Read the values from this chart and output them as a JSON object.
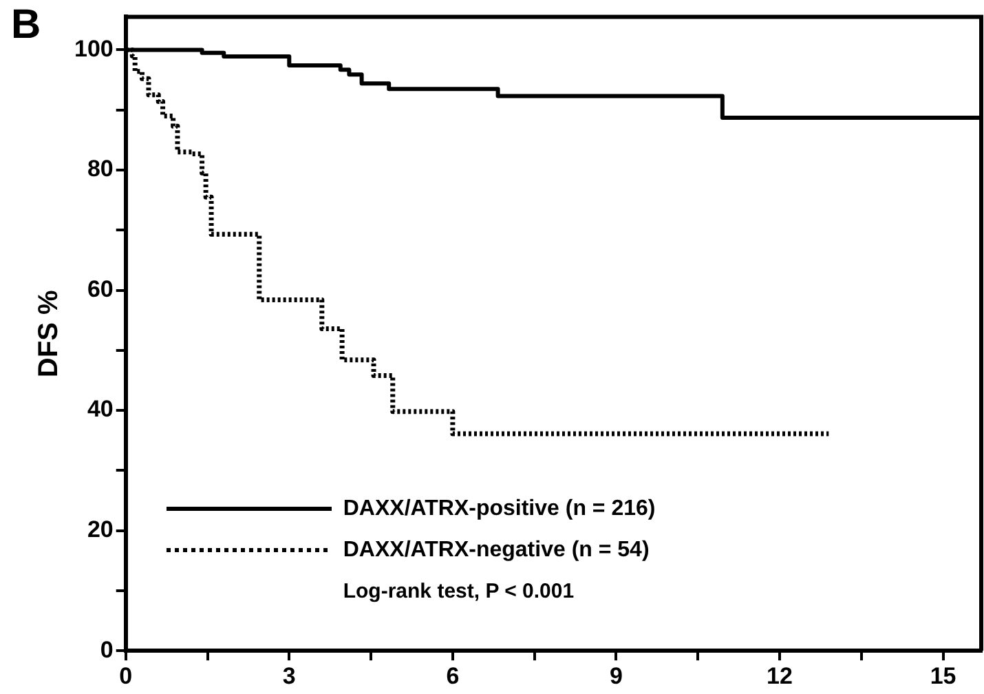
{
  "chart_data": {
    "type": "step",
    "title": "B",
    "ylabel": "DFS %",
    "xlim": [
      0,
      15.7
    ],
    "ylim": [
      0,
      105.5
    ],
    "xticks": [
      0,
      {
        "value": 1.5,
        "label": null
      },
      3,
      {
        "value": 4.5,
        "label": null
      },
      6,
      {
        "value": 7.5,
        "label": null
      },
      9,
      {
        "value": 10.5,
        "label": null
      },
      12,
      {
        "value": 13.5,
        "label": null
      },
      15
    ],
    "yticks": [
      0,
      {
        "value": 10,
        "label": null
      },
      20,
      {
        "value": 30,
        "label": null
      },
      40,
      {
        "value": 50,
        "label": null
      },
      60,
      {
        "value": 70,
        "label": null
      },
      80,
      {
        "value": 90,
        "label": null
      },
      100
    ],
    "grid": false,
    "legend": "bottom left",
    "marker": "none",
    "annotations": [
      "Log-rank test, P < 0.001"
    ],
    "series": [
      {
        "name": "DAXX/ATRX-positive (n = 216)",
        "color": "#000000",
        "line_style": "solid",
        "x": [
          0,
          1.4,
          1.8,
          3.0,
          3.94,
          4.1,
          4.33,
          4.83,
          6.83,
          10.95,
          15.7
        ],
        "values": [
          100,
          99.5,
          98.9,
          97.4,
          96.7,
          95.9,
          94.4,
          93.5,
          92.3,
          88.7,
          88.7
        ]
      },
      {
        "name": "DAXX/ATRX-negative (n = 54)",
        "color": "#000000",
        "line_style": "dotted",
        "x": [
          0,
          0.12,
          0.17,
          0.3,
          0.42,
          0.6,
          0.68,
          0.87,
          0.95,
          1.21,
          1.4,
          1.47,
          1.57,
          2.45,
          3.6,
          3.97,
          4.55,
          4.9,
          6.0,
          12.9
        ],
        "values": [
          100,
          99,
          96.4,
          95.2,
          92.5,
          91.4,
          89,
          87.3,
          83,
          82.7,
          79.5,
          75.5,
          69.3,
          58.4,
          53.6,
          48.4,
          45.8,
          39.8,
          36.1,
          36.1
        ]
      }
    ]
  }
}
